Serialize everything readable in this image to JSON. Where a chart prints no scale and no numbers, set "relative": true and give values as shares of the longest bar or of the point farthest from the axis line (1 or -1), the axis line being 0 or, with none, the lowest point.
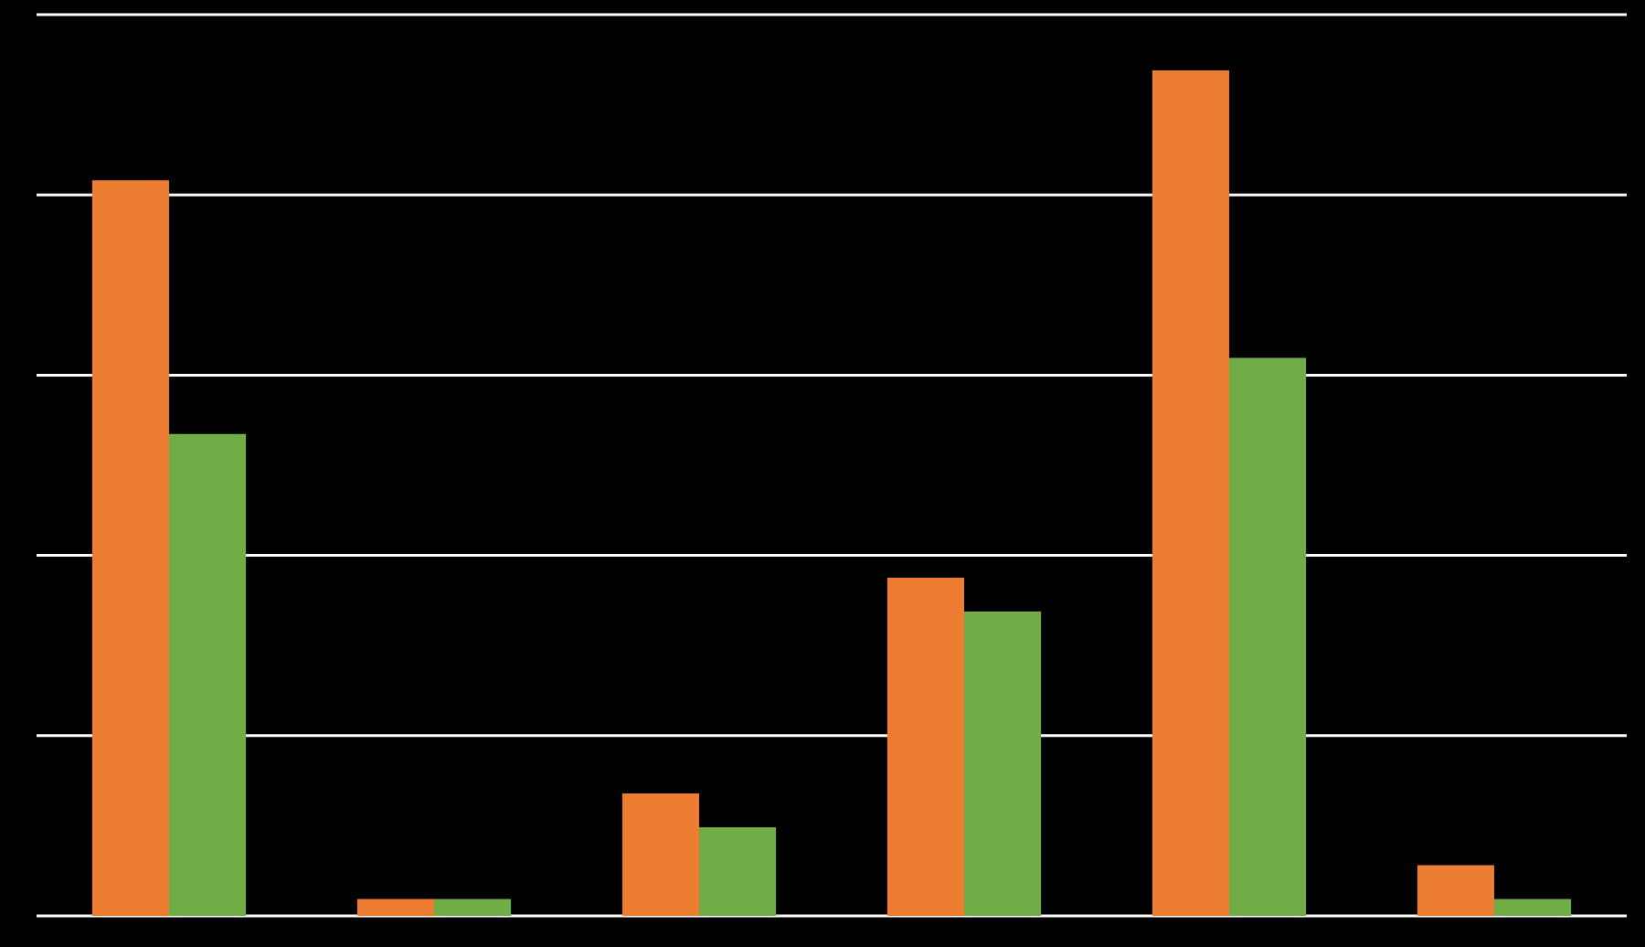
{
  "chart_data": {
    "type": "bar",
    "relative": true,
    "grid": "y",
    "categories": [
      null,
      null,
      null,
      null,
      null,
      null
    ],
    "series": [
      {
        "color": "#ed7d31",
        "values": [
          0.87,
          0.02,
          0.145,
          0.4,
          1,
          0.06
        ]
      },
      {
        "color": "#70ad47",
        "values": [
          0.57,
          0.02,
          0.105,
          0.36,
          0.66,
          0.02
        ]
      }
    ]
  }
}
